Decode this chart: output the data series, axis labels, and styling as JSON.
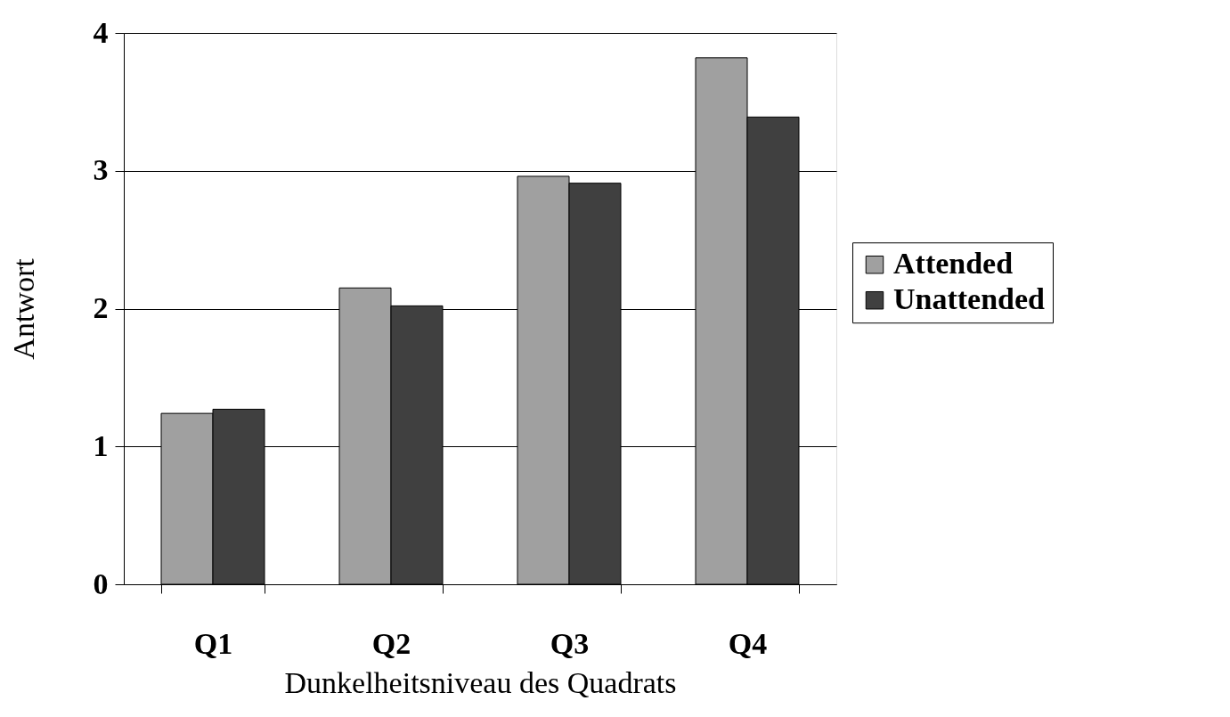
{
  "chart_data": {
    "type": "bar",
    "categories": [
      "Q1",
      "Q2",
      "Q3",
      "Q4"
    ],
    "series": [
      {
        "name": "Attended",
        "color": "#a0a0a0",
        "values": [
          1.24,
          2.15,
          2.96,
          3.82
        ]
      },
      {
        "name": "Unattended",
        "color": "#404040",
        "values": [
          1.27,
          2.02,
          2.91,
          3.39
        ]
      }
    ],
    "xlabel": "Dunkelheitsniveau des Quadrats",
    "ylabel": "Antwort",
    "ylim": [
      0,
      4
    ],
    "yticks": [
      0,
      1,
      2,
      3,
      4
    ],
    "grid": "y",
    "legend": "right"
  }
}
